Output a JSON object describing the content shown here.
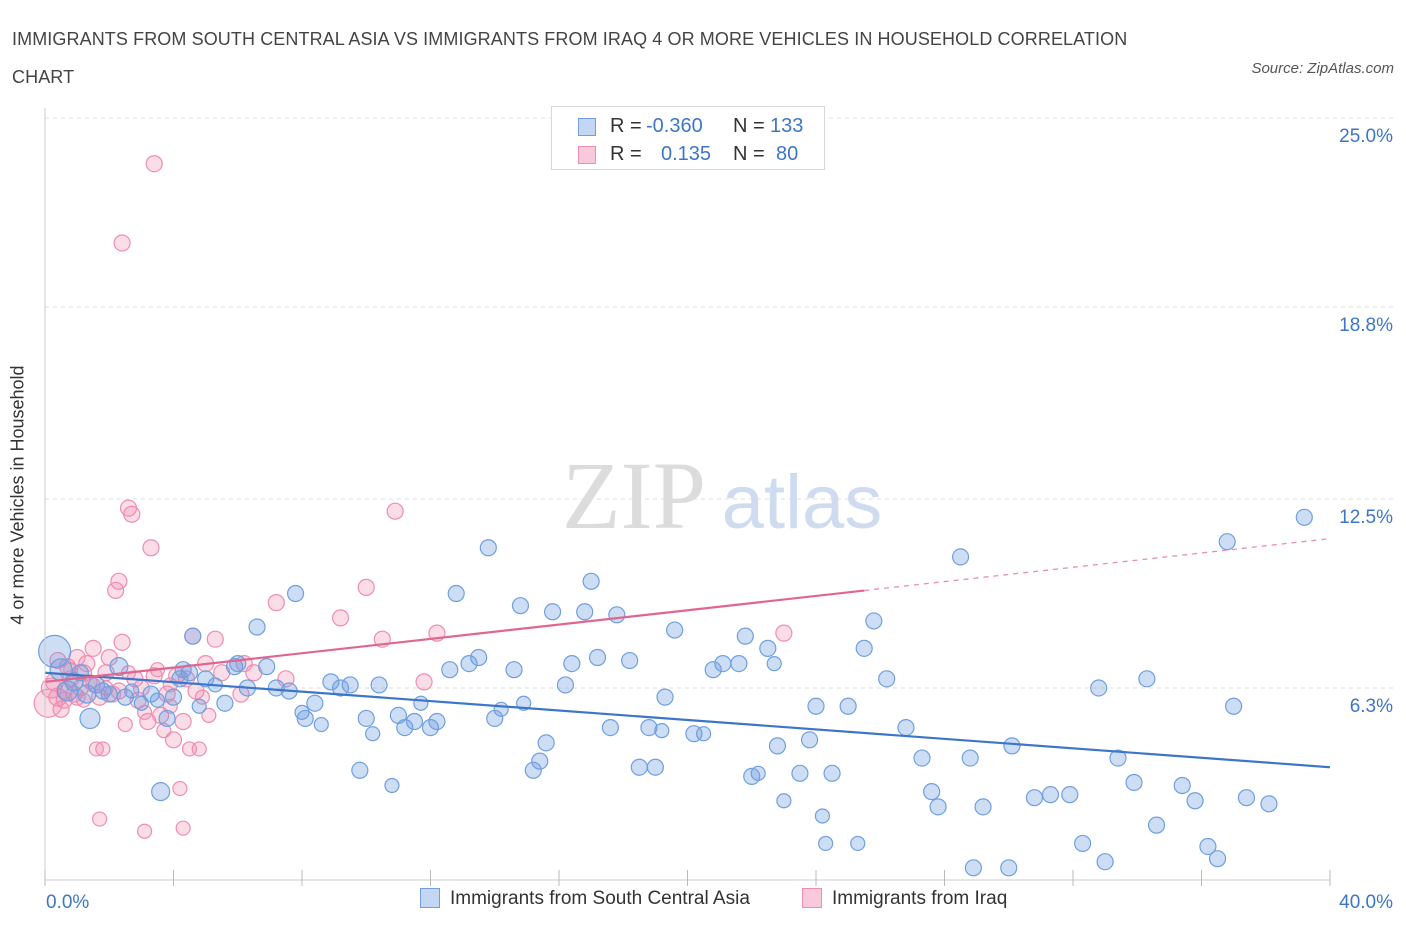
{
  "title": "IMMIGRANTS FROM SOUTH CENTRAL ASIA VS IMMIGRANTS FROM IRAQ 4 OR MORE VEHICLES IN HOUSEHOLD CORRELATION CHART",
  "source": "Source: ZipAtlas.com",
  "watermark": {
    "zip": "ZIP",
    "atlas": "atlas"
  },
  "legend": {
    "blue": {
      "r_label": "R =",
      "r_value": "-0.360",
      "n_label": "N =",
      "n_value": "133"
    },
    "pink": {
      "r_label": "R =",
      "r_value": "0.135",
      "n_label": "N =",
      "n_value": "80"
    }
  },
  "colors": {
    "blue": "#6f9fe0",
    "blue_line": "#3d76c9",
    "pink": "#f08db0",
    "pink_line": "#e06690",
    "axis_text": "#3d76c9"
  },
  "chart_data": {
    "type": "scatter",
    "ylabel": "4 or more Vehicles in Household",
    "x_tick_labels": [
      "0.0%",
      "40.0%"
    ],
    "y_tick_labels": [
      "6.3%",
      "12.5%",
      "18.8%",
      "25.0%"
    ],
    "xlim": [
      0,
      40
    ],
    "ylim": [
      0,
      25
    ],
    "y_ticks": [
      6.3,
      12.5,
      18.8,
      25.0
    ],
    "grid": true,
    "legend_position": "top-center",
    "series": [
      {
        "name": "Immigrants from South Central Asia",
        "color": "#6f9fe0",
        "trend": {
          "x0": 0,
          "y0": 6.8,
          "x1": 40,
          "y1": 3.7,
          "dashed_from": null
        },
        "points": [
          [
            0.3,
            7.5,
            1.6
          ],
          [
            0.5,
            6.9,
            1.1
          ],
          [
            0.7,
            6.2,
            1.0
          ],
          [
            0.9,
            6.5,
            0.9
          ],
          [
            1.1,
            6.8,
            0.8
          ],
          [
            1.3,
            6.1,
            0.9
          ],
          [
            1.4,
            5.3,
            1.0
          ],
          [
            1.6,
            6.4,
            0.8
          ],
          [
            1.8,
            6.2,
            0.8
          ],
          [
            2.0,
            6.1,
            0.8
          ],
          [
            2.3,
            7.0,
            0.9
          ],
          [
            2.5,
            6.0,
            0.8
          ],
          [
            2.7,
            6.2,
            0.7
          ],
          [
            3.0,
            5.8,
            0.7
          ],
          [
            3.3,
            6.1,
            0.8
          ],
          [
            3.5,
            5.9,
            0.7
          ],
          [
            3.6,
            2.9,
            0.9
          ],
          [
            3.8,
            5.3,
            0.8
          ],
          [
            4.0,
            6.0,
            0.8
          ],
          [
            4.2,
            6.6,
            0.8
          ],
          [
            4.3,
            6.9,
            0.8
          ],
          [
            4.5,
            6.8,
            0.8
          ],
          [
            4.6,
            8.0,
            0.8
          ],
          [
            4.8,
            5.7,
            0.7
          ],
          [
            5.0,
            6.6,
            0.8
          ],
          [
            5.3,
            6.4,
            0.7
          ],
          [
            5.6,
            5.8,
            0.8
          ],
          [
            5.9,
            7.0,
            0.8
          ],
          [
            6.0,
            7.1,
            0.8
          ],
          [
            6.3,
            6.3,
            0.8
          ],
          [
            6.6,
            8.3,
            0.8
          ],
          [
            6.9,
            7.0,
            0.8
          ],
          [
            7.2,
            6.3,
            0.8
          ],
          [
            7.6,
            6.2,
            0.8
          ],
          [
            7.8,
            9.4,
            0.8
          ],
          [
            8.0,
            5.5,
            0.7
          ],
          [
            8.1,
            5.3,
            0.8
          ],
          [
            8.4,
            5.8,
            0.8
          ],
          [
            8.6,
            5.1,
            0.7
          ],
          [
            8.9,
            6.5,
            0.8
          ],
          [
            9.2,
            6.3,
            0.8
          ],
          [
            9.5,
            6.4,
            0.8
          ],
          [
            9.8,
            3.6,
            0.8
          ],
          [
            10.0,
            5.3,
            0.8
          ],
          [
            10.2,
            4.8,
            0.7
          ],
          [
            10.4,
            6.4,
            0.8
          ],
          [
            10.8,
            3.1,
            0.7
          ],
          [
            11.0,
            5.4,
            0.8
          ],
          [
            11.2,
            5.0,
            0.8
          ],
          [
            11.5,
            5.2,
            0.8
          ],
          [
            11.7,
            5.8,
            0.7
          ],
          [
            12.0,
            5.0,
            0.8
          ],
          [
            12.2,
            5.2,
            0.8
          ],
          [
            12.6,
            6.9,
            0.8
          ],
          [
            12.8,
            9.4,
            0.8
          ],
          [
            13.2,
            7.1,
            0.8
          ],
          [
            13.5,
            7.3,
            0.8
          ],
          [
            13.8,
            10.9,
            0.8
          ],
          [
            14.0,
            5.3,
            0.8
          ],
          [
            14.2,
            5.6,
            0.7
          ],
          [
            14.6,
            6.9,
            0.8
          ],
          [
            14.8,
            9.0,
            0.8
          ],
          [
            15.2,
            3.6,
            0.8
          ],
          [
            15.4,
            3.9,
            0.8
          ],
          [
            15.6,
            4.5,
            0.8
          ],
          [
            15.8,
            8.8,
            0.8
          ],
          [
            16.2,
            6.4,
            0.8
          ],
          [
            16.4,
            7.1,
            0.8
          ],
          [
            16.8,
            8.8,
            0.8
          ],
          [
            17.0,
            9.8,
            0.8
          ],
          [
            17.2,
            7.3,
            0.8
          ],
          [
            17.6,
            5.0,
            0.8
          ],
          [
            17.8,
            8.7,
            0.8
          ],
          [
            18.2,
            7.2,
            0.8
          ],
          [
            18.5,
            3.7,
            0.8
          ],
          [
            18.8,
            5.0,
            0.8
          ],
          [
            19.0,
            3.7,
            0.8
          ],
          [
            19.3,
            6.0,
            0.8
          ],
          [
            19.6,
            8.2,
            0.8
          ],
          [
            20.2,
            4.8,
            0.8
          ],
          [
            20.5,
            4.8,
            0.7
          ],
          [
            20.8,
            6.9,
            0.8
          ],
          [
            21.1,
            7.1,
            0.8
          ],
          [
            21.6,
            7.1,
            0.8
          ],
          [
            21.8,
            8.0,
            0.8
          ],
          [
            22.0,
            3.4,
            0.8
          ],
          [
            22.2,
            3.5,
            0.7
          ],
          [
            22.5,
            7.6,
            0.8
          ],
          [
            22.8,
            4.4,
            0.8
          ],
          [
            23.0,
            2.6,
            0.7
          ],
          [
            23.5,
            3.5,
            0.8
          ],
          [
            23.8,
            4.6,
            0.8
          ],
          [
            24.0,
            5.7,
            0.8
          ],
          [
            24.2,
            2.1,
            0.7
          ],
          [
            24.5,
            3.5,
            0.8
          ],
          [
            25.0,
            5.7,
            0.8
          ],
          [
            25.5,
            7.6,
            0.8
          ],
          [
            25.8,
            8.5,
            0.8
          ],
          [
            26.2,
            6.6,
            0.8
          ],
          [
            26.8,
            5.0,
            0.8
          ],
          [
            27.3,
            4.0,
            0.8
          ],
          [
            27.6,
            2.9,
            0.8
          ],
          [
            27.8,
            2.4,
            0.8
          ],
          [
            28.5,
            10.6,
            0.8
          ],
          [
            28.8,
            4.0,
            0.8
          ],
          [
            29.2,
            2.4,
            0.8
          ],
          [
            30.1,
            4.4,
            0.8
          ],
          [
            30.8,
            2.7,
            0.8
          ],
          [
            31.3,
            2.8,
            0.8
          ],
          [
            31.9,
            2.8,
            0.8
          ],
          [
            32.3,
            1.2,
            0.8
          ],
          [
            32.8,
            6.3,
            0.8
          ],
          [
            33.4,
            4.0,
            0.8
          ],
          [
            33.9,
            3.2,
            0.8
          ],
          [
            34.3,
            6.6,
            0.8
          ],
          [
            34.6,
            1.8,
            0.8
          ],
          [
            35.4,
            3.1,
            0.8
          ],
          [
            35.8,
            2.6,
            0.8
          ],
          [
            36.2,
            1.1,
            0.8
          ],
          [
            36.5,
            0.7,
            0.8
          ],
          [
            36.8,
            11.1,
            0.8
          ],
          [
            37.0,
            5.7,
            0.8
          ],
          [
            37.4,
            2.7,
            0.8
          ],
          [
            38.1,
            2.5,
            0.8
          ],
          [
            39.2,
            11.9,
            0.8
          ],
          [
            33.0,
            0.6,
            0.8
          ],
          [
            30.0,
            0.4,
            0.8
          ],
          [
            28.9,
            0.4,
            0.8
          ],
          [
            24.3,
            1.2,
            0.7
          ],
          [
            25.3,
            1.2,
            0.7
          ],
          [
            19.2,
            4.9,
            0.7
          ],
          [
            22.7,
            7.1,
            0.7
          ],
          [
            14.9,
            5.8,
            0.7
          ]
        ]
      },
      {
        "name": "Immigrants from Iraq",
        "color": "#f08db0",
        "trend": {
          "x0": 0,
          "y0": 6.5,
          "x1": 40,
          "y1": 11.2,
          "dashed_from": 25.5
        },
        "points": [
          [
            0.1,
            5.8,
            1.4
          ],
          [
            0.2,
            6.3,
            1.0
          ],
          [
            0.3,
            6.5,
            0.9
          ],
          [
            0.4,
            6.0,
            0.9
          ],
          [
            0.5,
            5.6,
            0.8
          ],
          [
            0.6,
            6.2,
            0.8
          ],
          [
            0.7,
            7.0,
            0.8
          ],
          [
            0.8,
            6.6,
            0.8
          ],
          [
            0.9,
            6.1,
            0.8
          ],
          [
            1.0,
            7.3,
            0.8
          ],
          [
            1.1,
            6.3,
            0.8
          ],
          [
            1.2,
            6.8,
            0.8
          ],
          [
            1.3,
            7.1,
            0.8
          ],
          [
            1.4,
            6.5,
            0.7
          ],
          [
            1.5,
            7.6,
            0.8
          ],
          [
            1.6,
            4.3,
            0.7
          ],
          [
            1.7,
            6.0,
            0.8
          ],
          [
            1.8,
            4.3,
            0.7
          ],
          [
            1.9,
            6.3,
            0.7
          ],
          [
            2.0,
            7.3,
            0.8
          ],
          [
            2.1,
            6.1,
            0.8
          ],
          [
            2.2,
            9.5,
            0.8
          ],
          [
            2.3,
            9.8,
            0.8
          ],
          [
            2.4,
            7.8,
            0.8
          ],
          [
            2.5,
            5.1,
            0.7
          ],
          [
            2.6,
            12.2,
            0.8
          ],
          [
            2.7,
            12.0,
            0.8
          ],
          [
            2.8,
            6.6,
            0.8
          ],
          [
            2.9,
            5.9,
            0.8
          ],
          [
            3.0,
            6.3,
            0.8
          ],
          [
            3.1,
            5.5,
            0.7
          ],
          [
            3.2,
            5.2,
            0.8
          ],
          [
            3.3,
            10.9,
            0.8
          ],
          [
            3.4,
            6.7,
            0.8
          ],
          [
            3.5,
            6.9,
            0.7
          ],
          [
            3.6,
            5.4,
            0.8
          ],
          [
            3.7,
            4.9,
            0.7
          ],
          [
            3.8,
            6.1,
            0.8
          ],
          [
            3.9,
            5.7,
            0.7
          ],
          [
            4.0,
            4.6,
            0.8
          ],
          [
            4.1,
            6.7,
            0.8
          ],
          [
            4.2,
            3.0,
            0.7
          ],
          [
            4.3,
            5.2,
            0.8
          ],
          [
            4.4,
            6.6,
            0.8
          ],
          [
            4.5,
            4.3,
            0.7
          ],
          [
            4.6,
            8.0,
            0.8
          ],
          [
            4.7,
            6.2,
            0.8
          ],
          [
            4.8,
            4.3,
            0.7
          ],
          [
            5.0,
            7.1,
            0.8
          ],
          [
            5.1,
            5.4,
            0.7
          ],
          [
            5.3,
            7.9,
            0.8
          ],
          [
            5.5,
            6.8,
            0.8
          ],
          [
            6.1,
            6.1,
            0.8
          ],
          [
            6.2,
            7.1,
            0.8
          ],
          [
            6.5,
            6.8,
            0.8
          ],
          [
            7.2,
            9.1,
            0.8
          ],
          [
            7.5,
            6.6,
            0.8
          ],
          [
            9.2,
            8.6,
            0.8
          ],
          [
            10.0,
            9.6,
            0.8
          ],
          [
            10.5,
            7.9,
            0.8
          ],
          [
            10.9,
            12.1,
            0.8
          ],
          [
            11.8,
            6.5,
            0.8
          ],
          [
            12.2,
            8.1,
            0.8
          ],
          [
            2.4,
            20.9,
            0.8
          ],
          [
            3.4,
            23.5,
            0.8
          ],
          [
            1.7,
            2.0,
            0.7
          ],
          [
            3.1,
            1.6,
            0.7
          ],
          [
            4.3,
            1.7,
            0.7
          ],
          [
            0.6,
            5.9,
            0.8
          ],
          [
            1.0,
            6.0,
            0.8
          ],
          [
            1.9,
            6.8,
            0.8
          ],
          [
            2.3,
            6.2,
            0.8
          ],
          [
            23.0,
            8.1,
            0.8
          ],
          [
            0.4,
            7.2,
            0.8
          ],
          [
            0.8,
            6.9,
            0.7
          ],
          [
            1.5,
            6.4,
            0.7
          ],
          [
            2.6,
            6.8,
            0.7
          ],
          [
            3.9,
            6.4,
            0.7
          ],
          [
            4.9,
            6.0,
            0.7
          ],
          [
            1.2,
            5.9,
            0.7
          ]
        ]
      }
    ]
  }
}
